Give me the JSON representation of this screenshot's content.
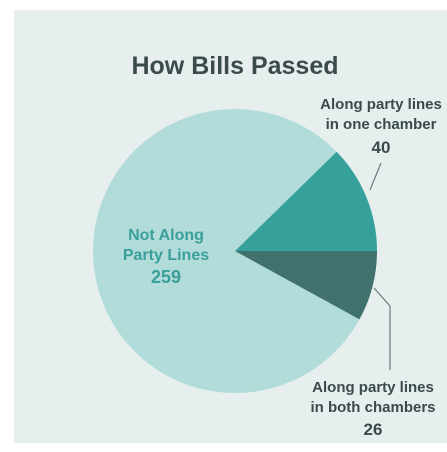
{
  "chart_data": {
    "type": "pie",
    "title": "How Bills Passed",
    "slices": [
      {
        "label_lines": [
          "Not Along",
          "Party Lines"
        ],
        "value": 259,
        "color": "#b2dcda",
        "text_color": "#3a9e9a"
      },
      {
        "label_lines": [
          "Along party lines",
          "in one chamber"
        ],
        "value": 40,
        "color": "#36a19b",
        "text_color": "#3b4a4a"
      },
      {
        "label_lines": [
          "Along party lines",
          "in both chambers"
        ],
        "value": 26,
        "color": "#40716d",
        "text_color": "#3b4a4a"
      }
    ],
    "colors": {
      "background": "#e6eeee",
      "title": "#3b4a4a",
      "leader": "#707a7a"
    }
  }
}
